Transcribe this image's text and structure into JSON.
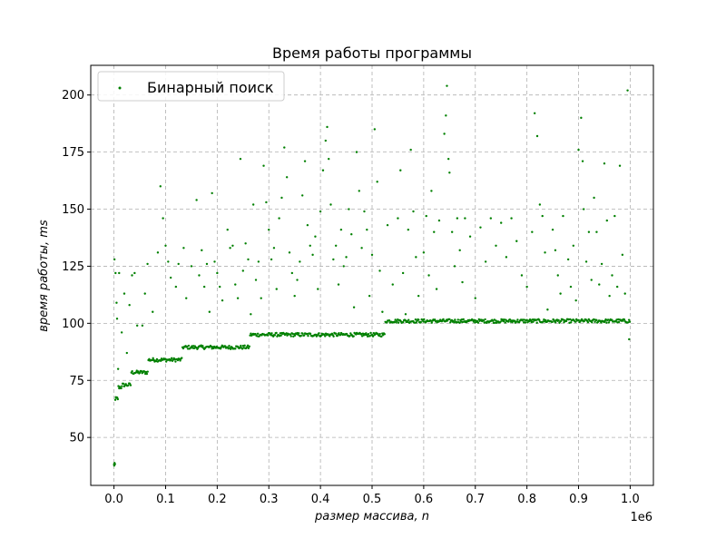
{
  "chart_data": {
    "type": "scatter",
    "title": "Время работы программы",
    "xlabel": "размер массива, n",
    "ylabel": "время работы, ms",
    "x_offset_label": "1e6",
    "xlim": [
      -45000,
      1045000
    ],
    "ylim": [
      29,
      213
    ],
    "xticks": [
      0,
      100000,
      200000,
      300000,
      400000,
      500000,
      600000,
      700000,
      800000,
      900000,
      1000000
    ],
    "xtick_labels": [
      "0.0",
      "0.1",
      "0.2",
      "0.3",
      "0.4",
      "0.5",
      "0.6",
      "0.7",
      "0.8",
      "0.9",
      "1.0"
    ],
    "yticks": [
      50,
      75,
      100,
      125,
      150,
      175,
      200
    ],
    "ytick_labels": [
      "50",
      "75",
      "100",
      "125",
      "150",
      "175",
      "200"
    ],
    "grid": true,
    "legend_position": "top-left",
    "series": [
      {
        "name": "Бинарный поиск",
        "color": "#008000",
        "marker": "point",
        "baseline_steps": [
          {
            "x_start": 0,
            "x_end": 2000,
            "y": 38
          },
          {
            "x_start": 2000,
            "x_end": 8000,
            "y": 67
          },
          {
            "x_start": 8000,
            "x_end": 16000,
            "y": 72
          },
          {
            "x_start": 16000,
            "x_end": 33000,
            "y": 73
          },
          {
            "x_start": 33000,
            "x_end": 66000,
            "y": 78.5
          },
          {
            "x_start": 66000,
            "x_end": 132000,
            "y": 84
          },
          {
            "x_start": 132000,
            "x_end": 263000,
            "y": 89.5
          },
          {
            "x_start": 263000,
            "x_end": 525000,
            "y": 95
          },
          {
            "x_start": 525000,
            "x_end": 1000000,
            "y": 101
          }
        ],
        "outlier_points": [
          [
            1000,
            128
          ],
          [
            3000,
            122
          ],
          [
            5000,
            109
          ],
          [
            6000,
            102
          ],
          [
            8000,
            80
          ],
          [
            10000,
            122
          ],
          [
            15000,
            96
          ],
          [
            20000,
            113
          ],
          [
            25000,
            87
          ],
          [
            30000,
            108
          ],
          [
            35000,
            121
          ],
          [
            40000,
            122
          ],
          [
            45000,
            99
          ],
          [
            55000,
            99
          ],
          [
            60000,
            113
          ],
          [
            65000,
            126
          ],
          [
            75000,
            105
          ],
          [
            85000,
            131
          ],
          [
            90000,
            160
          ],
          [
            95000,
            146
          ],
          [
            100000,
            134
          ],
          [
            105000,
            127
          ],
          [
            110000,
            120
          ],
          [
            120000,
            116
          ],
          [
            125000,
            126
          ],
          [
            135000,
            133
          ],
          [
            140000,
            111
          ],
          [
            150000,
            125
          ],
          [
            160000,
            154
          ],
          [
            165000,
            121
          ],
          [
            170000,
            132
          ],
          [
            175000,
            116
          ],
          [
            180000,
            126
          ],
          [
            185000,
            105
          ],
          [
            190000,
            157
          ],
          [
            195000,
            127
          ],
          [
            200000,
            122
          ],
          [
            205000,
            116
          ],
          [
            210000,
            110
          ],
          [
            220000,
            141
          ],
          [
            225000,
            133
          ],
          [
            230000,
            134
          ],
          [
            235000,
            117
          ],
          [
            240000,
            111
          ],
          [
            245000,
            172
          ],
          [
            250000,
            123
          ],
          [
            255000,
            135
          ],
          [
            260000,
            128
          ],
          [
            265000,
            104
          ],
          [
            270000,
            152
          ],
          [
            275000,
            119
          ],
          [
            280000,
            127
          ],
          [
            285000,
            111
          ],
          [
            290000,
            169
          ],
          [
            295000,
            153
          ],
          [
            300000,
            141
          ],
          [
            305000,
            128
          ],
          [
            310000,
            133
          ],
          [
            315000,
            115
          ],
          [
            320000,
            146
          ],
          [
            325000,
            155
          ],
          [
            330000,
            177
          ],
          [
            335000,
            164
          ],
          [
            340000,
            131
          ],
          [
            345000,
            122
          ],
          [
            350000,
            112
          ],
          [
            355000,
            119
          ],
          [
            360000,
            127
          ],
          [
            365000,
            156
          ],
          [
            370000,
            171
          ],
          [
            375000,
            143
          ],
          [
            380000,
            134
          ],
          [
            385000,
            130
          ],
          [
            390000,
            138
          ],
          [
            395000,
            115
          ],
          [
            400000,
            149
          ],
          [
            405000,
            167
          ],
          [
            410000,
            180
          ],
          [
            413000,
            186
          ],
          [
            416000,
            172
          ],
          [
            420000,
            152
          ],
          [
            425000,
            128
          ],
          [
            430000,
            134
          ],
          [
            435000,
            117
          ],
          [
            440000,
            141
          ],
          [
            445000,
            125
          ],
          [
            450000,
            129
          ],
          [
            455000,
            150
          ],
          [
            460000,
            139
          ],
          [
            465000,
            107
          ],
          [
            470000,
            175
          ],
          [
            475000,
            158
          ],
          [
            480000,
            133
          ],
          [
            485000,
            149
          ],
          [
            490000,
            141
          ],
          [
            495000,
            112
          ],
          [
            500000,
            130
          ],
          [
            505000,
            185
          ],
          [
            510000,
            162
          ],
          [
            515000,
            123
          ],
          [
            520000,
            105
          ],
          [
            530000,
            143
          ],
          [
            540000,
            117
          ],
          [
            550000,
            146
          ],
          [
            555000,
            167
          ],
          [
            560000,
            122
          ],
          [
            565000,
            104
          ],
          [
            570000,
            141
          ],
          [
            575000,
            176
          ],
          [
            580000,
            149
          ],
          [
            585000,
            129
          ],
          [
            590000,
            112
          ],
          [
            600000,
            131
          ],
          [
            605000,
            147
          ],
          [
            610000,
            121
          ],
          [
            615000,
            158
          ],
          [
            620000,
            140
          ],
          [
            625000,
            115
          ],
          [
            630000,
            145
          ],
          [
            640000,
            183
          ],
          [
            643000,
            191
          ],
          [
            645000,
            204
          ],
          [
            648000,
            172
          ],
          [
            650000,
            166
          ],
          [
            655000,
            140
          ],
          [
            660000,
            125
          ],
          [
            665000,
            146
          ],
          [
            670000,
            132
          ],
          [
            675000,
            118
          ],
          [
            680000,
            146
          ],
          [
            690000,
            138
          ],
          [
            700000,
            111
          ],
          [
            710000,
            142
          ],
          [
            720000,
            127
          ],
          [
            730000,
            146
          ],
          [
            740000,
            134
          ],
          [
            750000,
            144
          ],
          [
            760000,
            129
          ],
          [
            770000,
            146
          ],
          [
            780000,
            136
          ],
          [
            790000,
            121
          ],
          [
            800000,
            116
          ],
          [
            810000,
            140
          ],
          [
            815000,
            192
          ],
          [
            820000,
            182
          ],
          [
            825000,
            152
          ],
          [
            830000,
            147
          ],
          [
            835000,
            131
          ],
          [
            840000,
            106
          ],
          [
            850000,
            141
          ],
          [
            855000,
            132
          ],
          [
            860000,
            121
          ],
          [
            865000,
            113
          ],
          [
            870000,
            147
          ],
          [
            880000,
            128
          ],
          [
            885000,
            116
          ],
          [
            890000,
            134
          ],
          [
            895000,
            110
          ],
          [
            900000,
            176
          ],
          [
            905000,
            190
          ],
          [
            908000,
            171
          ],
          [
            910000,
            150
          ],
          [
            915000,
            127
          ],
          [
            920000,
            140
          ],
          [
            925000,
            119
          ],
          [
            930000,
            155
          ],
          [
            935000,
            140
          ],
          [
            940000,
            117
          ],
          [
            945000,
            126
          ],
          [
            950000,
            170
          ],
          [
            955000,
            145
          ],
          [
            960000,
            112
          ],
          [
            965000,
            121
          ],
          [
            970000,
            147
          ],
          [
            975000,
            116
          ],
          [
            980000,
            169
          ],
          [
            985000,
            130
          ],
          [
            990000,
            113
          ],
          [
            995000,
            202
          ],
          [
            998000,
            93
          ]
        ]
      }
    ]
  }
}
